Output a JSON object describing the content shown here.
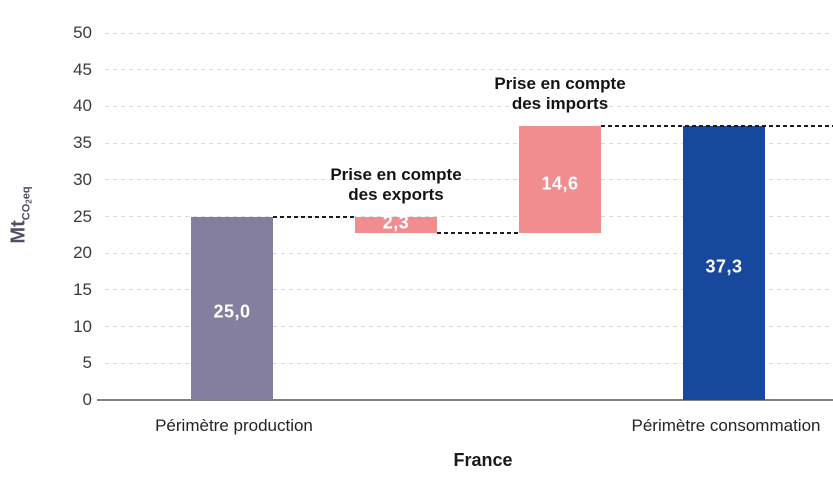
{
  "chart_data": {
    "type": "waterfall",
    "title": "",
    "xlabel": "France",
    "ylabel": "Mt CO2eq",
    "ylabel_main": "Mt",
    "ylabel_sub_pre": "CO",
    "ylabel_sub_num": "2",
    "ylabel_sub_post": "eq",
    "ylim": [
      0,
      50
    ],
    "ytick_step": 5,
    "yticks": [
      0,
      5,
      10,
      15,
      20,
      25,
      30,
      35,
      40,
      45,
      50
    ],
    "grid": true,
    "bars": [
      {
        "name": "perimetre-production",
        "category": "Périmètre production",
        "start": 0,
        "end": 25.0,
        "value_label": "25,0",
        "color": "#847f9e",
        "annotation_lines": []
      },
      {
        "name": "prise-en-compte-des-exports",
        "category": "",
        "start": 22.7,
        "end": 25.0,
        "value_label": "2,3",
        "color": "#f18d8e",
        "annotation_lines": [
          "Prise en compte",
          "des exports"
        ]
      },
      {
        "name": "prise-en-compte-des-imports",
        "category": "",
        "start": 22.7,
        "end": 37.3,
        "value_label": "14,6",
        "color": "#f18d8e",
        "annotation_lines": [
          "Prise en compte",
          "des imports"
        ]
      },
      {
        "name": "perimetre-consommation",
        "category": "Périmètre consommation",
        "start": 0,
        "end": 37.3,
        "value_label": "37,3",
        "color": "#17489b",
        "annotation_lines": []
      }
    ],
    "connectors": [
      {
        "level": 25.0,
        "from_bar": 0,
        "to_bar": 1
      },
      {
        "level": 22.7,
        "from_bar": 1,
        "to_bar": 2
      },
      {
        "level": 37.3,
        "from_bar": 2,
        "to_bar": "right-edge"
      }
    ]
  }
}
